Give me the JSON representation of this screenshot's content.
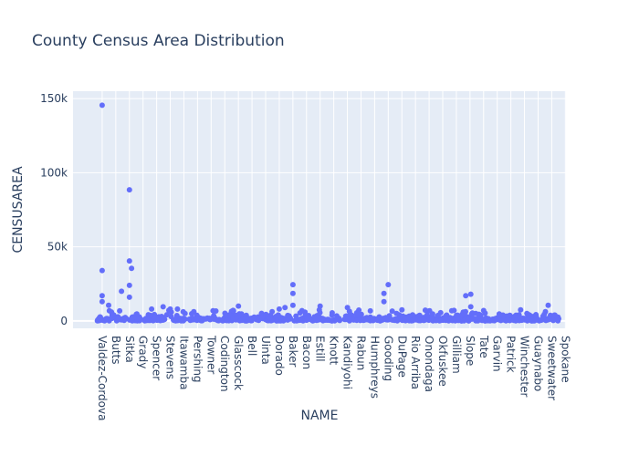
{
  "chart_data": {
    "type": "scatter",
    "title": "County Census Area Distribution",
    "xlabel": "NAME",
    "ylabel": "CENSUSAREA",
    "ylim": [
      -5000,
      155000
    ],
    "yticks": [
      {
        "value": 0,
        "label": "0"
      },
      {
        "value": 50000,
        "label": "50k"
      },
      {
        "value": 100000,
        "label": "100k"
      },
      {
        "value": 150000,
        "label": "150k"
      }
    ],
    "grid": true,
    "legend": "none",
    "marker_color": "#636efa",
    "plot_bg": "#e5ecf6",
    "category_count": 3221,
    "tick_categories": [
      {
        "label": "Valdez-Cordova",
        "index": 95
      },
      {
        "label": "Butts",
        "index": 190
      },
      {
        "label": "Sitka",
        "index": 285
      },
      {
        "label": "Grady",
        "index": 380
      },
      {
        "label": "Spencer",
        "index": 475
      },
      {
        "label": "Stevens",
        "index": 570
      },
      {
        "label": "Itawamba",
        "index": 665
      },
      {
        "label": "Pershing",
        "index": 760
      },
      {
        "label": "Towner",
        "index": 855
      },
      {
        "label": "Codington",
        "index": 950
      },
      {
        "label": "Glasscock",
        "index": 1045
      },
      {
        "label": "Bell",
        "index": 1140
      },
      {
        "label": "Uinta",
        "index": 1235
      },
      {
        "label": "Dorado",
        "index": 1330
      },
      {
        "label": "Baker",
        "index": 1425
      },
      {
        "label": "Bacon",
        "index": 1520
      },
      {
        "label": "Estill",
        "index": 1615
      },
      {
        "label": "Knott",
        "index": 1710
      },
      {
        "label": "Kandiyohi",
        "index": 1805
      },
      {
        "label": "Rabun",
        "index": 1900
      },
      {
        "label": "Humphreys",
        "index": 1995
      },
      {
        "label": "Gooding",
        "index": 2090
      },
      {
        "label": "DuPage",
        "index": 2185
      },
      {
        "label": "Rio Arriba",
        "index": 2280
      },
      {
        "label": "Onondaga",
        "index": 2375
      },
      {
        "label": "Okfuskee",
        "index": 2470
      },
      {
        "label": "Gilliam",
        "index": 2565
      },
      {
        "label": "Slope",
        "index": 2660
      },
      {
        "label": "Tate",
        "index": 2755
      },
      {
        "label": "Garvin",
        "index": 2850
      },
      {
        "label": "Patrick",
        "index": 2945
      },
      {
        "label": "Winchester",
        "index": 3040
      },
      {
        "label": "Guaynabo",
        "index": 3135
      },
      {
        "label": "Sweetwater",
        "index": 3230
      },
      {
        "label": "Spokane",
        "index": 3325
      }
    ],
    "notable_points": [
      {
        "x": 95,
        "y": 145500
      },
      {
        "x": 285,
        "y": 88500
      },
      {
        "x": 285,
        "y": 40500
      },
      {
        "x": 300,
        "y": 35500
      },
      {
        "x": 95,
        "y": 34000
      },
      {
        "x": 285,
        "y": 24000
      },
      {
        "x": 1425,
        "y": 24500
      },
      {
        "x": 2090,
        "y": 24500
      },
      {
        "x": 1425,
        "y": 18500
      },
      {
        "x": 2060,
        "y": 18500
      },
      {
        "x": 2665,
        "y": 18000
      },
      {
        "x": 2630,
        "y": 17000
      },
      {
        "x": 95,
        "y": 17000
      },
      {
        "x": 285,
        "y": 16000
      },
      {
        "x": 230,
        "y": 20000
      },
      {
        "x": 95,
        "y": 13000
      },
      {
        "x": 140,
        "y": 10500
      },
      {
        "x": 2060,
        "y": 13000
      },
      {
        "x": 3205,
        "y": 10500
      },
      {
        "x": 1045,
        "y": 10000
      },
      {
        "x": 520,
        "y": 9500
      },
      {
        "x": 1805,
        "y": 9000
      },
      {
        "x": 1425,
        "y": 10500
      },
      {
        "x": 2665,
        "y": 9500
      },
      {
        "x": 1615,
        "y": 10000
      },
      {
        "x": 1370,
        "y": 9000
      },
      {
        "x": 570,
        "y": 8000
      },
      {
        "x": 620,
        "y": 8000
      },
      {
        "x": 440,
        "y": 8000
      },
      {
        "x": 2185,
        "y": 7500
      },
      {
        "x": 1330,
        "y": 8000
      },
      {
        "x": 2755,
        "y": 7000
      }
    ]
  }
}
